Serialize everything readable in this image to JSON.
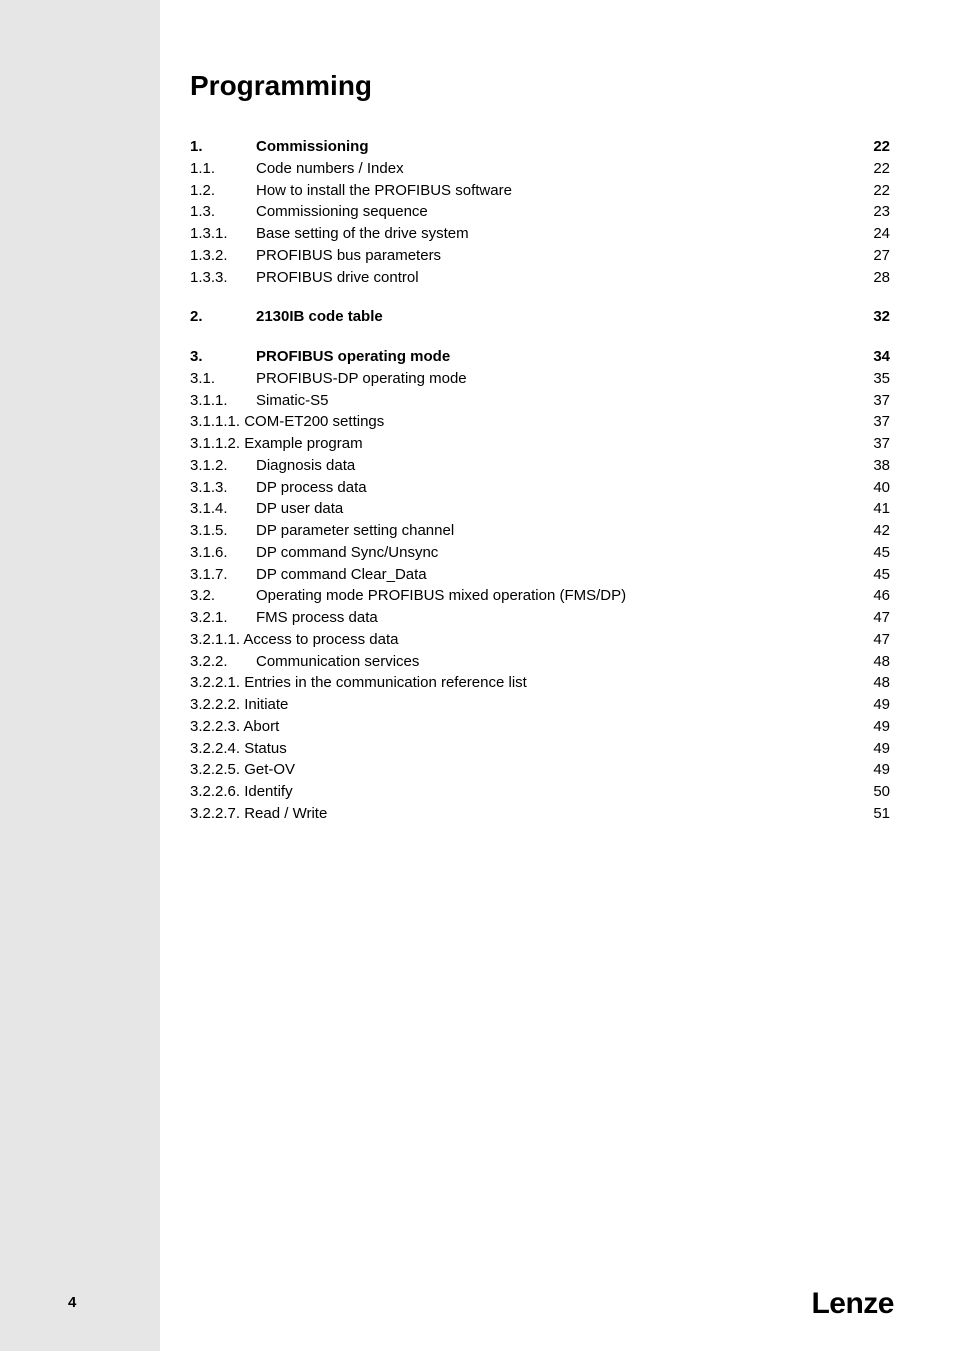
{
  "title": "Programming",
  "footer_page": "4",
  "footer_logo": "Lenze",
  "toc": [
    {
      "num": "1.",
      "label": "Commissioning",
      "page": "22",
      "bold": true,
      "gap_before": false,
      "num_width": 66,
      "label_indent": 0
    },
    {
      "num": "1.1.",
      "label": "Code numbers / Index",
      "page": "22",
      "bold": false,
      "gap_before": false,
      "num_width": 66,
      "label_indent": 0
    },
    {
      "num": "1.2.",
      "label": "How to install the PROFIBUS software",
      "page": "22",
      "bold": false,
      "gap_before": false,
      "num_width": 66,
      "label_indent": 0
    },
    {
      "num": "1.3.",
      "label": "Commissioning sequence",
      "page": "23",
      "bold": false,
      "gap_before": false,
      "num_width": 66,
      "label_indent": 0
    },
    {
      "num": "1.3.1.",
      "label": "Base setting of the drive system",
      "page": "24",
      "bold": false,
      "gap_before": false,
      "num_width": 66,
      "label_indent": 0
    },
    {
      "num": "1.3.2.",
      "label": "PROFIBUS bus parameters",
      "page": "27",
      "bold": false,
      "gap_before": false,
      "num_width": 66,
      "label_indent": 0
    },
    {
      "num": "1.3.3.",
      "label": "PROFIBUS drive control",
      "page": "28",
      "bold": false,
      "gap_before": false,
      "num_width": 66,
      "label_indent": 0
    },
    {
      "num": "2.",
      "label": "2130IB code table",
      "page": "32",
      "bold": true,
      "gap_before": true,
      "num_width": 66,
      "label_indent": 0
    },
    {
      "num": "3.",
      "label": "PROFIBUS operating mode",
      "page": "34",
      "bold": true,
      "gap_before": true,
      "num_width": 66,
      "label_indent": 0
    },
    {
      "num": "3.1.",
      "label": "PROFIBUS-DP operating mode",
      "page": "35",
      "bold": false,
      "gap_before": false,
      "num_width": 66,
      "label_indent": 0
    },
    {
      "num": "3.1.1.",
      "label": "Simatic-S5",
      "page": "37",
      "bold": false,
      "gap_before": false,
      "num_width": 66,
      "label_indent": 0
    },
    {
      "num": "3.1.1.1.",
      "label": "COM-ET200 settings",
      "page": "37",
      "bold": false,
      "gap_before": false,
      "num_width": 0,
      "label_indent": 0,
      "no_col": true
    },
    {
      "num": "3.1.1.2.",
      "label": "Example program",
      "page": "37",
      "bold": false,
      "gap_before": false,
      "num_width": 0,
      "label_indent": 0,
      "no_col": true
    },
    {
      "num": "3.1.2.",
      "label": "Diagnosis data",
      "page": "38",
      "bold": false,
      "gap_before": false,
      "num_width": 66,
      "label_indent": 0
    },
    {
      "num": "3.1.3.",
      "label": "DP process data",
      "page": "40",
      "bold": false,
      "gap_before": false,
      "num_width": 66,
      "label_indent": 0
    },
    {
      "num": "3.1.4.",
      "label": "DP user data",
      "page": "41",
      "bold": false,
      "gap_before": false,
      "num_width": 66,
      "label_indent": 0
    },
    {
      "num": "3.1.5.",
      "label": "DP parameter setting channel",
      "page": "42",
      "bold": false,
      "gap_before": false,
      "num_width": 66,
      "label_indent": 0
    },
    {
      "num": "3.1.6.",
      "label": "DP command Sync/Unsync",
      "page": "45",
      "bold": false,
      "gap_before": false,
      "num_width": 66,
      "label_indent": 0
    },
    {
      "num": "3.1.7.",
      "label": "DP command Clear_Data",
      "page": "45",
      "bold": false,
      "gap_before": false,
      "num_width": 66,
      "label_indent": 0
    },
    {
      "num": "3.2.",
      "label": "Operating mode PROFIBUS mixed operation (FMS/DP)",
      "page": "46",
      "bold": false,
      "gap_before": false,
      "num_width": 66,
      "label_indent": 0
    },
    {
      "num": "3.2.1.",
      "label": "FMS process data",
      "page": "47",
      "bold": false,
      "gap_before": false,
      "num_width": 66,
      "label_indent": 0
    },
    {
      "num": "3.2.1.1.",
      "label": "Access to process data",
      "page": "47",
      "bold": false,
      "gap_before": false,
      "num_width": 0,
      "label_indent": 0,
      "no_col": true
    },
    {
      "num": "3.2.2.",
      "label": "Communication services",
      "page": "48",
      "bold": false,
      "gap_before": false,
      "num_width": 66,
      "label_indent": 0
    },
    {
      "num": "3.2.2.1.",
      "label": "Entries in the communication reference list",
      "page": "48",
      "bold": false,
      "gap_before": false,
      "num_width": 0,
      "label_indent": 0,
      "no_col": true
    },
    {
      "num": "3.2.2.2.",
      "label": "Initiate",
      "page": "49",
      "bold": false,
      "gap_before": false,
      "num_width": 0,
      "label_indent": 0,
      "no_col": true
    },
    {
      "num": "3.2.2.3.",
      "label": "Abort",
      "page": "49",
      "bold": false,
      "gap_before": false,
      "num_width": 0,
      "label_indent": 0,
      "no_col": true
    },
    {
      "num": "3.2.2.4.",
      "label": "Status",
      "page": "49",
      "bold": false,
      "gap_before": false,
      "num_width": 0,
      "label_indent": 0,
      "no_col": true
    },
    {
      "num": "3.2.2.5.",
      "label": "Get-OV",
      "page": "49",
      "bold": false,
      "gap_before": false,
      "num_width": 0,
      "label_indent": 0,
      "no_col": true
    },
    {
      "num": "3.2.2.6.",
      "label": "Identify",
      "page": "50",
      "bold": false,
      "gap_before": false,
      "num_width": 0,
      "label_indent": 0,
      "no_col": true
    },
    {
      "num": "3.2.2.7.",
      "label": "Read / Write",
      "page": "51",
      "bold": false,
      "gap_before": false,
      "num_width": 0,
      "label_indent": 0,
      "no_col": true
    }
  ]
}
